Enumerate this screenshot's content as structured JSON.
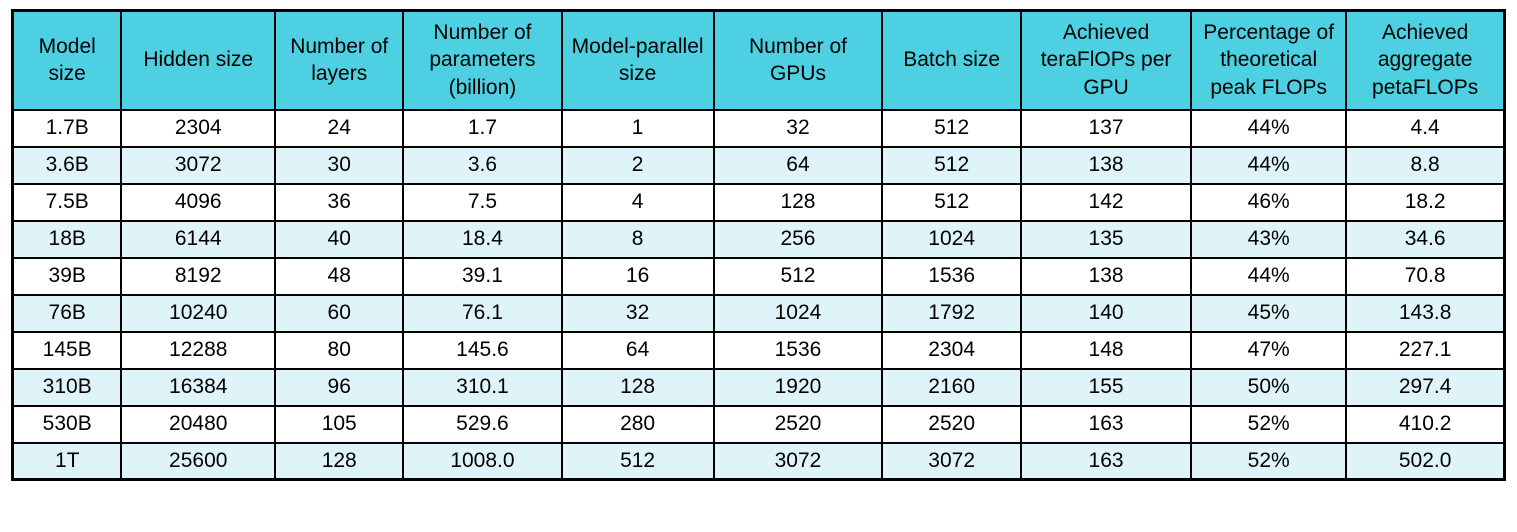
{
  "colors": {
    "header_bg": "#4dd0e1",
    "row_alt_bg": "#dff4f9",
    "row_bg": "#ffffff",
    "border": "#000000",
    "text": "#000000"
  },
  "chart_data": {
    "type": "table",
    "title": "",
    "columns": [
      "Model size",
      "Hidden size",
      "Number of layers",
      "Number of parameters (billion)",
      "Model-parallel size",
      "Number of GPUs",
      "Batch size",
      "Achieved teraFlOPs per GPU",
      "Percentage of theoretical peak FLOPs",
      "Achieved aggregate petaFLOPs"
    ],
    "rows": [
      [
        "1.7B",
        "2304",
        "24",
        "1.7",
        "1",
        "32",
        "512",
        "137",
        "44%",
        "4.4"
      ],
      [
        "3.6B",
        "3072",
        "30",
        "3.6",
        "2",
        "64",
        "512",
        "138",
        "44%",
        "8.8"
      ],
      [
        "7.5B",
        "4096",
        "36",
        "7.5",
        "4",
        "128",
        "512",
        "142",
        "46%",
        "18.2"
      ],
      [
        "18B",
        "6144",
        "40",
        "18.4",
        "8",
        "256",
        "1024",
        "135",
        "43%",
        "34.6"
      ],
      [
        "39B",
        "8192",
        "48",
        "39.1",
        "16",
        "512",
        "1536",
        "138",
        "44%",
        "70.8"
      ],
      [
        "76B",
        "10240",
        "60",
        "76.1",
        "32",
        "1024",
        "1792",
        "140",
        "45%",
        "143.8"
      ],
      [
        "145B",
        "12288",
        "80",
        "145.6",
        "64",
        "1536",
        "2304",
        "148",
        "47%",
        "227.1"
      ],
      [
        "310B",
        "16384",
        "96",
        "310.1",
        "128",
        "1920",
        "2160",
        "155",
        "50%",
        "297.4"
      ],
      [
        "530B",
        "20480",
        "105",
        "529.6",
        "280",
        "2520",
        "2520",
        "163",
        "52%",
        "410.2"
      ],
      [
        "1T",
        "25600",
        "128",
        "1008.0",
        "512",
        "3072",
        "3072",
        "163",
        "52%",
        "502.0"
      ]
    ]
  }
}
